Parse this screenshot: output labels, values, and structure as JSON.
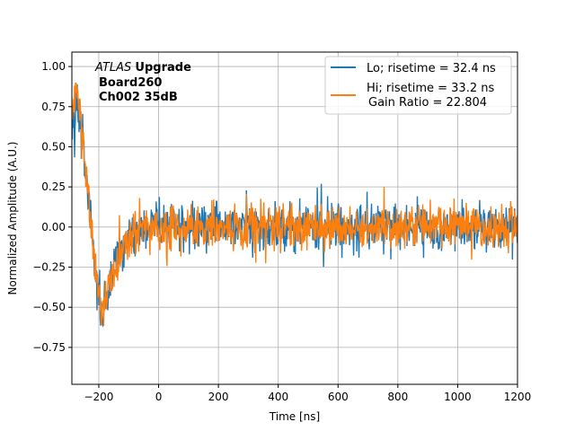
{
  "chart_data": {
    "type": "line",
    "title": "",
    "xlabel": "Time [ns]",
    "ylabel": "Normalized Amplitude (A.U.)",
    "xlim": [
      -290,
      1200
    ],
    "ylim": [
      -0.98,
      1.09
    ],
    "xticks": [
      -200,
      0,
      200,
      400,
      600,
      800,
      1000,
      1200
    ],
    "xtick_labels": [
      "−200",
      "0",
      "200",
      "400",
      "600",
      "800",
      "1000",
      "1200"
    ],
    "yticks": [
      -0.75,
      -0.5,
      -0.25,
      0.0,
      0.25,
      0.5,
      0.75,
      1.0
    ],
    "ytick_labels": [
      "−0.75",
      "−0.50",
      "−0.25",
      "0.00",
      "0.25",
      "0.50",
      "0.75",
      "1.00"
    ],
    "grid": true,
    "legend_position": "top-right",
    "annotation": {
      "atlas": "ATLAS",
      "upgrade": "Upgrade",
      "line2": "Board260",
      "line3": "Ch002 35dB"
    },
    "series": [
      {
        "name": "Lo; risetime = 32.4 ns",
        "color": "#1f77b4",
        "x": [
          -290,
          -270,
          -250,
          -230,
          -210,
          -190,
          -170,
          -150,
          -120,
          -90,
          -60,
          -30,
          0,
          50,
          100,
          200,
          300,
          400,
          500,
          600,
          700,
          800,
          900,
          1000,
          1100,
          1200
        ],
        "y": [
          0.7,
          0.8,
          0.45,
          0.1,
          -0.3,
          -0.55,
          -0.45,
          -0.3,
          -0.15,
          -0.05,
          0.0,
          0.0,
          0.02,
          0.0,
          0.0,
          0.0,
          0.0,
          0.0,
          0.0,
          0.0,
          0.0,
          0.0,
          0.0,
          0.0,
          0.0,
          0.0
        ],
        "noise_amplitude": 0.13
      },
      {
        "name": "Hi; risetime = 33.2 ns\n Gain Ratio = 22.804",
        "color": "#ff7f0e",
        "x": [
          -290,
          -270,
          -250,
          -230,
          -210,
          -190,
          -170,
          -150,
          -120,
          -90,
          -60,
          -30,
          0,
          50,
          100,
          200,
          300,
          400,
          500,
          600,
          700,
          800,
          900,
          1000,
          1100,
          1200
        ],
        "y": [
          0.72,
          0.82,
          0.48,
          0.12,
          -0.28,
          -0.52,
          -0.42,
          -0.28,
          -0.14,
          -0.05,
          0.0,
          0.0,
          0.02,
          0.0,
          0.0,
          0.0,
          0.0,
          0.0,
          0.0,
          0.0,
          0.0,
          0.0,
          0.0,
          0.0,
          0.0,
          0.0
        ],
        "noise_amplitude": 0.12
      }
    ]
  }
}
